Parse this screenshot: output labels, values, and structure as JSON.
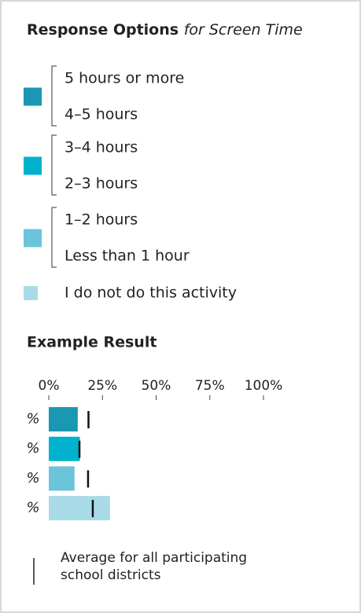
{
  "legend": {
    "title": "Response Options",
    "title_italic": "for Screen Time",
    "groups": [
      {
        "color": "#1a97b2",
        "labels": [
          "5 hours or more",
          "4–5 hours"
        ]
      },
      {
        "color": "#00b2cd",
        "labels": [
          "3–4 hours",
          "2–3 hours"
        ]
      },
      {
        "color": "#6cc4da",
        "labels": [
          "1–2 hours",
          "Less than 1 hour"
        ]
      },
      {
        "color": "#a8dbe7",
        "labels": [
          "I do not do this activity"
        ]
      }
    ]
  },
  "chart_data": {
    "type": "bar",
    "orientation": "horizontal",
    "title": "Example Result",
    "categories": [
      "%",
      "%",
      "%",
      "%"
    ],
    "values": [
      13.5,
      14.5,
      12,
      28.5
    ],
    "averages": [
      18.5,
      14.3,
      18.3,
      20.5
    ],
    "colors": [
      "#1a97b2",
      "#00b2cd",
      "#6cc4da",
      "#a8dbe7"
    ],
    "xlim": [
      0,
      100
    ],
    "xticks": [
      {
        "value": 0,
        "label": "0%"
      },
      {
        "value": 25,
        "label": "25%"
      },
      {
        "value": 50,
        "label": "50%"
      },
      {
        "value": 75,
        "label": "75%"
      },
      {
        "value": 100,
        "label": "100%"
      }
    ],
    "average_label": [
      "Average for all participating",
      "school districts"
    ]
  }
}
